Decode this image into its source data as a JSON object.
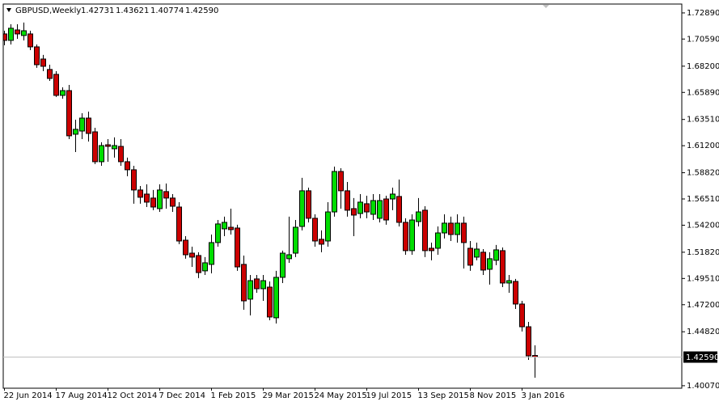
{
  "chart_data": {
    "type": "candlestick",
    "title": "GBPUSD,Weekly",
    "header_ohlc": [
      "1.42731",
      "1.43621",
      "1.40774",
      "1.42590"
    ],
    "categories": [
      "22 Jun 2014",
      null,
      null,
      null,
      null,
      null,
      null,
      null,
      "17 Aug 2014",
      null,
      null,
      null,
      null,
      null,
      null,
      null,
      "12 Oct 2014",
      null,
      null,
      null,
      null,
      null,
      null,
      null,
      "7 Dec 2014",
      null,
      null,
      null,
      null,
      null,
      null,
      null,
      "1 Feb 2015",
      null,
      null,
      null,
      null,
      null,
      null,
      null,
      "29 Mar 2015",
      null,
      null,
      null,
      null,
      null,
      null,
      null,
      "24 May 2015",
      null,
      null,
      null,
      null,
      null,
      null,
      null,
      "19 Jul 2015",
      null,
      null,
      null,
      null,
      null,
      null,
      null,
      "13 Sep 2015",
      null,
      null,
      null,
      null,
      null,
      null,
      null,
      "8 Nov 2015",
      null,
      null,
      null,
      null,
      null,
      null,
      null,
      "3 Jan 2016",
      null,
      null
    ],
    "open": [
      1.7104,
      1.7047,
      1.7139,
      1.709,
      1.7104,
      1.699,
      1.6883,
      1.6791,
      1.6748,
      1.6563,
      1.6605,
      1.6221,
      1.6249,
      1.6363,
      1.6242,
      1.5979,
      1.6128,
      1.6093,
      1.6114,
      1.5979,
      1.5908,
      1.573,
      1.5694,
      1.5659,
      1.5566,
      1.5716,
      1.5659,
      1.558,
      1.5288,
      1.5174,
      1.5153,
      1.5018,
      1.5075,
      1.5267,
      1.5388,
      1.5402,
      1.5395,
      1.5075,
      1.4769,
      1.4947,
      1.4861,
      1.4875,
      1.4605,
      1.4961,
      1.5125,
      1.5174,
      1.5409,
      1.5723,
      1.5481,
      1.5296,
      1.5281,
      1.5537,
      1.5893,
      1.5723,
      1.5566,
      1.5523,
      1.5609,
      1.5516,
      1.5481,
      1.5651,
      1.5651,
      1.5673,
      1.5445,
      1.5196,
      1.5452,
      1.5552,
      1.5217,
      1.5217,
      1.5352,
      1.5438,
      1.5338,
      1.5438,
      1.5217,
      1.5139,
      1.5182,
      1.5032,
      1.5111,
      1.5196,
      1.4911,
      1.4925,
      1.4726,
      1.4526,
      1.42731
    ],
    "high": [
      1.7132,
      1.7189,
      1.7189,
      1.7204,
      1.7132,
      1.7011,
      1.6919,
      1.6833,
      1.6776,
      1.6634,
      1.6655,
      1.6349,
      1.6406,
      1.642,
      1.6278,
      1.615,
      1.6178,
      1.6193,
      1.6178,
      1.6015,
      1.5943,
      1.5765,
      1.578,
      1.573,
      1.578,
      1.5787,
      1.5694,
      1.5623,
      1.5324,
      1.5231,
      1.5182,
      1.5139,
      1.5338,
      1.5466,
      1.5495,
      1.5566,
      1.5424,
      1.5153,
      1.4982,
      1.4982,
      1.4982,
      1.4925,
      1.5018,
      1.5196,
      1.5495,
      1.5466,
      1.5837,
      1.5751,
      1.5516,
      1.5374,
      1.5623,
      1.5936,
      1.5922,
      1.5801,
      1.5659,
      1.5694,
      1.568,
      1.5694,
      1.5694,
      1.568,
      1.5751,
      1.5822,
      1.5481,
      1.5516,
      1.5659,
      1.5587,
      1.5267,
      1.5409,
      1.5516,
      1.5495,
      1.5516,
      1.5495,
      1.5281,
      1.5267,
      1.521,
      1.5182,
      1.5246,
      1.5224,
      1.4982,
      1.4947,
      1.4754,
      1.4569,
      1.43621
    ],
    "low": [
      1.7004,
      1.7011,
      1.7061,
      1.7047,
      1.6961,
      1.6805,
      1.6776,
      1.6691,
      1.6549,
      1.6534,
      1.6178,
      1.6064,
      1.6178,
      1.6157,
      1.5958,
      1.5943,
      1.5979,
      1.6015,
      1.5943,
      1.5851,
      1.5609,
      1.5609,
      1.558,
      1.5552,
      1.5537,
      1.5566,
      1.5537,
      1.5253,
      1.5125,
      1.5053,
      1.4954,
      1.4982,
      1.4996,
      1.5231,
      1.5324,
      1.5338,
      1.5018,
      1.4676,
      1.4626,
      1.4825,
      1.4754,
      1.4583,
      1.4555,
      1.4911,
      1.5089,
      1.5139,
      1.5374,
      1.5445,
      1.5231,
      1.5182,
      1.5231,
      1.5495,
      1.5566,
      1.5495,
      1.5324,
      1.5481,
      1.5481,
      1.5466,
      1.5445,
      1.5424,
      1.5552,
      1.5409,
      1.516,
      1.516,
      1.5409,
      1.5139,
      1.5111,
      1.516,
      1.5303,
      1.5281,
      1.5267,
      1.5039,
      1.5018,
      1.5111,
      1.4982,
      1.4897,
      1.5068,
      1.4875,
      1.4825,
      1.4683,
      1.4484,
      1.4234,
      1.40774
    ],
    "close": [
      1.7047,
      1.7154,
      1.7104,
      1.7132,
      1.699,
      1.6833,
      1.6819,
      1.6712,
      1.6563,
      1.6605,
      1.6207,
      1.6264,
      1.6363,
      1.6228,
      1.5979,
      1.6121,
      1.6114,
      1.6121,
      1.5979,
      1.5908,
      1.573,
      1.5666,
      1.5623,
      1.558,
      1.573,
      1.5659,
      1.5587,
      1.5281,
      1.516,
      1.5139,
      1.5003,
      1.5089,
      1.5267,
      1.5431,
      1.5445,
      1.5381,
      1.5053,
      1.4754,
      1.4932,
      1.4861,
      1.4932,
      1.4612,
      1.4961,
      1.5174,
      1.516,
      1.5402,
      1.5723,
      1.5481,
      1.5281,
      1.5253,
      1.5537,
      1.5893,
      1.5723,
      1.5552,
      1.5509,
      1.5623,
      1.5537,
      1.5637,
      1.5637,
      1.5466,
      1.5694,
      1.5445,
      1.5196,
      1.5466,
      1.5537,
      1.5196,
      1.5196,
      1.5352,
      1.5438,
      1.5338,
      1.5438,
      1.5267,
      1.5068,
      1.521,
      1.5025,
      1.5125,
      1.5203,
      1.4911,
      1.4932,
      1.4726,
      1.4526,
      1.427,
      1.4259
    ],
    "up_color": "#00dd00",
    "down_color": "#cc0000",
    "ylim": [
      1.3985,
      1.7367
    ],
    "yticks": [
      {
        "value": 1.7289,
        "label": "1.72890"
      },
      {
        "value": 1.7059,
        "label": "1.70590"
      },
      {
        "value": 1.682,
        "label": "1.68200"
      },
      {
        "value": 1.6589,
        "label": "1.65890"
      },
      {
        "value": 1.6351,
        "label": "1.63510"
      },
      {
        "value": 1.612,
        "label": "1.61200"
      },
      {
        "value": 1.5882,
        "label": "1.58820"
      },
      {
        "value": 1.5651,
        "label": "1.56510"
      },
      {
        "value": 1.542,
        "label": "1.54200"
      },
      {
        "value": 1.5182,
        "label": "1.51820"
      },
      {
        "value": 1.4951,
        "label": "1.49510"
      },
      {
        "value": 1.472,
        "label": "1.47200"
      },
      {
        "value": 1.4482,
        "label": "1.44820"
      },
      {
        "value": 1.4007,
        "label": "1.40070"
      }
    ],
    "last_price": {
      "value": 1.4259,
      "label": "1.42590"
    }
  }
}
